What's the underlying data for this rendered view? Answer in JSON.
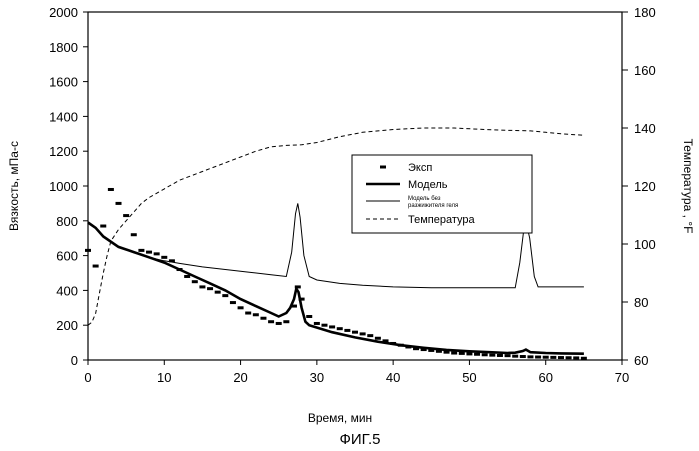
{
  "chart_data": {
    "type": "line",
    "figure_label": "ФИГ.5",
    "xlabel": "Время, мин",
    "ylabel_left": "Вязкость, мПа-с",
    "ylabel_right": "Температура , °F",
    "xlim": [
      0,
      70
    ],
    "ylim_left": [
      0,
      2000
    ],
    "ylim_right": [
      60,
      180
    ],
    "x_ticks": [
      "0",
      "10",
      "20",
      "30",
      "40",
      "50",
      "60",
      "70"
    ],
    "y_left_ticks": [
      "0",
      "200",
      "400",
      "600",
      "800",
      "1000",
      "1200",
      "1400",
      "1600",
      "1800",
      "2000"
    ],
    "y_right_ticks": [
      "60",
      "80",
      "100",
      "120",
      "140",
      "160",
      "180"
    ],
    "grid": false,
    "legend_position": "center-right",
    "series": [
      {
        "name": "Эксп",
        "style": "markers",
        "axis": "left",
        "x": [
          0,
          1,
          2,
          3,
          4,
          5,
          6,
          7,
          8,
          9,
          10,
          11,
          12,
          13,
          14,
          15,
          16,
          17,
          18,
          19,
          20,
          21,
          22,
          23,
          24,
          25,
          26,
          27,
          27.5,
          28,
          29,
          30,
          31,
          32,
          33,
          34,
          35,
          36,
          37,
          38,
          39,
          40,
          41,
          42,
          43,
          44,
          45,
          46,
          47,
          48,
          49,
          50,
          51,
          52,
          53,
          54,
          55,
          56,
          57,
          58,
          59,
          60,
          61,
          62,
          63,
          64,
          65
        ],
        "y": [
          630,
          540,
          770,
          980,
          900,
          830,
          720,
          630,
          620,
          610,
          590,
          570,
          520,
          480,
          450,
          420,
          410,
          390,
          370,
          330,
          300,
          270,
          260,
          240,
          220,
          210,
          220,
          310,
          420,
          350,
          250,
          210,
          200,
          190,
          180,
          170,
          160,
          150,
          140,
          125,
          110,
          95,
          85,
          75,
          65,
          60,
          55,
          50,
          45,
          40,
          38,
          35,
          33,
          30,
          28,
          26,
          25,
          22,
          20,
          18,
          17,
          16,
          15,
          14,
          13,
          12,
          10
        ]
      },
      {
        "name": "Модель",
        "style": "thick",
        "axis": "left",
        "x": [
          0,
          1,
          2,
          4,
          6,
          8,
          10,
          12,
          14,
          16,
          18,
          20,
          22,
          24,
          25,
          26,
          26.5,
          27,
          27.3,
          27.6,
          28,
          28.5,
          29,
          32,
          35,
          38,
          41,
          44,
          47,
          50,
          53,
          55,
          56,
          57,
          57.4,
          58,
          60,
          62,
          65
        ],
        "y": [
          790,
          760,
          710,
          650,
          620,
          590,
          560,
          520,
          480,
          440,
          400,
          350,
          310,
          270,
          250,
          270,
          300,
          350,
          410,
          390,
          300,
          220,
          200,
          160,
          130,
          105,
          85,
          70,
          58,
          50,
          44,
          40,
          42,
          52,
          60,
          45,
          40,
          38,
          36
        ]
      },
      {
        "name": "Модель без разжижителя геля",
        "style": "thin",
        "axis": "left",
        "x": [
          0,
          1,
          2,
          4,
          6,
          8,
          10,
          12,
          15,
          18,
          21,
          24,
          26,
          26.7,
          27.2,
          27.5,
          27.8,
          28.3,
          29,
          30,
          33,
          36,
          40,
          45,
          50,
          55,
          56,
          56.6,
          57.1,
          57.5,
          57.9,
          58.5,
          59,
          62,
          65
        ],
        "y": [
          790,
          760,
          710,
          650,
          620,
          590,
          570,
          555,
          535,
          520,
          505,
          490,
          480,
          620,
          840,
          900,
          820,
          600,
          480,
          460,
          440,
          430,
          420,
          415,
          415,
          415,
          415,
          560,
          740,
          780,
          700,
          480,
          420,
          420,
          420
        ]
      },
      {
        "name": "Температура",
        "style": "dashed",
        "axis": "right",
        "x": [
          0,
          0.5,
          1,
          1.5,
          2,
          2.5,
          3,
          4,
          5,
          6,
          7,
          8,
          10,
          12,
          15,
          18,
          20,
          22,
          24,
          26,
          28,
          30,
          33,
          36,
          40,
          44,
          48,
          52,
          55,
          58,
          60,
          62,
          65
        ],
        "y": [
          72,
          73,
          76,
          83,
          90,
          96,
          101,
          105,
          108,
          111,
          114,
          116,
          119,
          122,
          125,
          128,
          130,
          132,
          133.5,
          134,
          134.2,
          135,
          137,
          138.5,
          139.5,
          140,
          140,
          139.5,
          139.2,
          139,
          138.5,
          138,
          137.5
        ]
      }
    ]
  }
}
